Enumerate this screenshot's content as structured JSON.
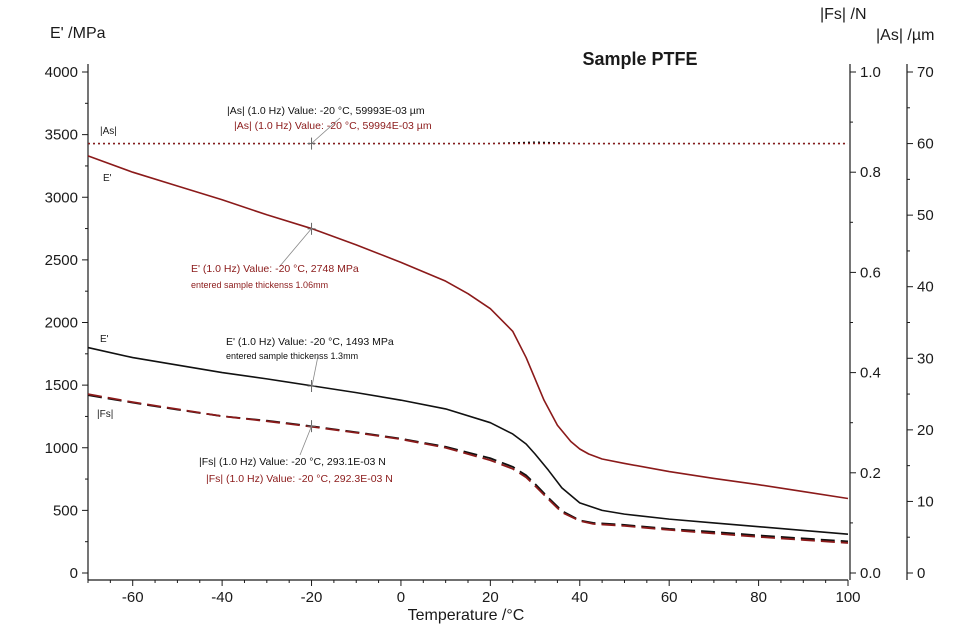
{
  "chart_data": {
    "type": "line",
    "title": "Sample PTFE",
    "xlabel": "Temperature /°C",
    "xlim": [
      -70,
      100
    ],
    "x_ticks": [
      -60,
      -40,
      -20,
      0,
      20,
      40,
      60,
      80,
      100
    ],
    "axes": {
      "left": {
        "label": "E' /MPa",
        "lim": [
          0,
          4000
        ],
        "ticks": [
          0,
          500,
          1000,
          1500,
          2000,
          2500,
          3000,
          3500,
          4000
        ]
      },
      "right1": {
        "label": "|Fs| /N",
        "lim": [
          0,
          1.0
        ],
        "ticks": [
          "0.0",
          "0.2",
          "0.4",
          "0.6",
          "0.8",
          "1.0"
        ]
      },
      "right2": {
        "label": "|As| /µm",
        "lim": [
          0,
          70
        ],
        "ticks": [
          0,
          10,
          20,
          30,
          40,
          50,
          60,
          70
        ]
      }
    },
    "colors": {
      "black": "#111111",
      "red": "#8b1a1a",
      "axis": "#1a1a1a"
    },
    "series": [
      {
        "name": "|As| sample 1",
        "label": "|As|",
        "axis": "right2",
        "color": "black",
        "style": "dotted",
        "x": [
          -70,
          -40,
          -20,
          0,
          20,
          30,
          35,
          40,
          60,
          80,
          100
        ],
        "y": [
          60,
          60,
          60,
          60,
          60,
          60.2,
          60.1,
          60,
          60,
          60,
          60
        ]
      },
      {
        "name": "|As| sample 2",
        "axis": "right2",
        "color": "red",
        "style": "dotted",
        "x": [
          -70,
          0,
          30,
          100
        ],
        "y": [
          60,
          60,
          60,
          60
        ]
      },
      {
        "name": "E' sample 1.06mm",
        "label": "E'",
        "axis": "left",
        "color": "red",
        "style": "solid",
        "x": [
          -70,
          -60,
          -50,
          -40,
          -30,
          -20,
          -10,
          0,
          10,
          15,
          20,
          25,
          28,
          30,
          32,
          35,
          38,
          40,
          42,
          45,
          50,
          60,
          70,
          80,
          90,
          100
        ],
        "y": [
          3330,
          3200,
          3090,
          2980,
          2860,
          2750,
          2620,
          2480,
          2330,
          2230,
          2110,
          1930,
          1720,
          1550,
          1380,
          1180,
          1050,
          990,
          950,
          910,
          875,
          810,
          755,
          705,
          650,
          595
        ]
      },
      {
        "name": "E' sample 1.3mm",
        "label": "E'",
        "axis": "left",
        "color": "black",
        "style": "solid",
        "x": [
          -70,
          -60,
          -50,
          -40,
          -30,
          -20,
          -10,
          0,
          10,
          20,
          25,
          28,
          30,
          33,
          36,
          40,
          45,
          50,
          60,
          70,
          80,
          90,
          100
        ],
        "y": [
          1800,
          1720,
          1660,
          1600,
          1550,
          1495,
          1440,
          1380,
          1310,
          1200,
          1110,
          1030,
          950,
          820,
          680,
          560,
          500,
          470,
          430,
          400,
          370,
          340,
          310
        ]
      },
      {
        "name": "|Fs| sample 1",
        "label": "|Fs|",
        "axis": "right1",
        "color": "black",
        "style": "dashed",
        "x": [
          -70,
          -60,
          -50,
          -40,
          -30,
          -20,
          -10,
          0,
          10,
          20,
          25,
          28,
          30,
          33,
          36,
          40,
          43,
          50,
          60,
          70,
          80,
          90,
          100
        ],
        "y": [
          0.355,
          0.34,
          0.326,
          0.313,
          0.304,
          0.293,
          0.281,
          0.268,
          0.252,
          0.229,
          0.212,
          0.195,
          0.178,
          0.15,
          0.124,
          0.105,
          0.1,
          0.096,
          0.088,
          0.082,
          0.075,
          0.069,
          0.063
        ]
      },
      {
        "name": "|Fs| sample 2",
        "axis": "right1",
        "color": "red",
        "style": "dashed",
        "x": [
          -70,
          -60,
          -50,
          -40,
          -30,
          -20,
          -10,
          0,
          10,
          20,
          25,
          28,
          30,
          33,
          36,
          40,
          43,
          50,
          60,
          70,
          80,
          90,
          100
        ],
        "y": [
          0.357,
          0.341,
          0.327,
          0.313,
          0.303,
          0.292,
          0.28,
          0.267,
          0.25,
          0.225,
          0.208,
          0.191,
          0.174,
          0.147,
          0.121,
          0.104,
          0.098,
          0.094,
          0.086,
          0.079,
          0.072,
          0.066,
          0.06
        ]
      }
    ],
    "annotations": [
      {
        "id": "as1",
        "text": "|As| (1.0 Hz) Value: -20 °C, 59993E-03 µm",
        "color": "black",
        "anchor": {
          "axis": "right2",
          "x": -20,
          "y": 60
        }
      },
      {
        "id": "as2",
        "text": "|As| (1.0 Hz) Value: -20 °C, 59994E-03 µm",
        "color": "red"
      },
      {
        "id": "e1",
        "text": "E' (1.0 Hz) Value: -20 °C, 2748 MPa",
        "color": "red",
        "anchor": {
          "axis": "left",
          "x": -20,
          "y": 2748
        }
      },
      {
        "id": "e1b",
        "text": "entered sample thickenss 1.06mm",
        "color": "red"
      },
      {
        "id": "e2",
        "text": "E' (1.0 Hz) Value: -20 °C, 1493 MPa",
        "color": "black",
        "anchor": {
          "axis": "left",
          "x": -20,
          "y": 1493
        }
      },
      {
        "id": "e2b",
        "text": "entered sample thickenss 1.3mm",
        "color": "black"
      },
      {
        "id": "fs1",
        "text": "|Fs| (1.0 Hz) Value: -20 °C, 293.1E-03 N",
        "color": "black",
        "anchor": {
          "axis": "right1",
          "x": -20,
          "y": 0.2931
        }
      },
      {
        "id": "fs2",
        "text": "|Fs| (1.0 Hz) Value: -20 °C, 292.3E-03 N",
        "color": "red"
      }
    ],
    "series_labels": [
      {
        "id": "lbl-as",
        "text": "|As|"
      },
      {
        "id": "lbl-e-red",
        "text": "E'"
      },
      {
        "id": "lbl-e-black",
        "text": "E'"
      },
      {
        "id": "lbl-fs",
        "text": "|Fs|"
      }
    ]
  }
}
